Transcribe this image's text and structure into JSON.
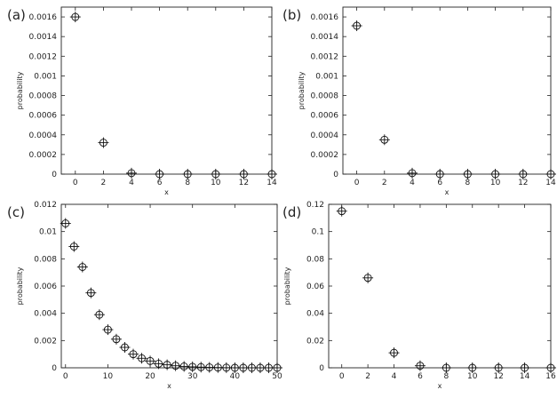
{
  "chart_data": [
    {
      "panel_label": "(a)",
      "type": "scatter",
      "xlabel": "x",
      "ylabel": "probability",
      "xlim": [
        -1,
        14
      ],
      "ylim": [
        0,
        0.0017
      ],
      "xticks": [
        "0",
        "2",
        "4",
        "6",
        "8",
        "10",
        "12",
        "14"
      ],
      "yticks": [
        "0",
        "0.0002",
        "0.0004",
        "0.0006",
        "0.0008",
        "0.001",
        "0.0012",
        "0.0014",
        "0.0016"
      ],
      "x": [
        0,
        2,
        4,
        6,
        8,
        10,
        12,
        14
      ],
      "y": [
        0.0016,
        0.00032,
        1e-05,
        0,
        0,
        0,
        0,
        0
      ],
      "grid": false
    },
    {
      "panel_label": "(b)",
      "type": "scatter",
      "xlabel": "x",
      "ylabel": "probability",
      "xlim": [
        -1,
        14
      ],
      "ylim": [
        0,
        0.0017
      ],
      "xticks": [
        "0",
        "2",
        "4",
        "6",
        "8",
        "10",
        "12",
        "14"
      ],
      "yticks": [
        "0",
        "0.0002",
        "0.0004",
        "0.0006",
        "0.0008",
        "0.001",
        "0.0012",
        "0.0014",
        "0.0016"
      ],
      "x": [
        0,
        2,
        4,
        6,
        8,
        10,
        12,
        14
      ],
      "y": [
        0.00151,
        0.00035,
        1e-05,
        0,
        0,
        0,
        0,
        0
      ],
      "grid": false
    },
    {
      "panel_label": "(c)",
      "type": "scatter",
      "xlabel": "x",
      "ylabel": "probability",
      "xlim": [
        -1,
        50
      ],
      "ylim": [
        0,
        0.012
      ],
      "xticks": [
        "0",
        "10",
        "20",
        "30",
        "40",
        "50"
      ],
      "yticks": [
        "0",
        "0.002",
        "0.004",
        "0.006",
        "0.008",
        "0.01",
        "0.012"
      ],
      "x": [
        0,
        2,
        4,
        6,
        8,
        10,
        12,
        14,
        16,
        18,
        20,
        22,
        24,
        26,
        28,
        30,
        32,
        34,
        36,
        38,
        40,
        42,
        44,
        46,
        48,
        50
      ],
      "y": [
        0.0106,
        0.0089,
        0.0074,
        0.0055,
        0.0039,
        0.0028,
        0.0021,
        0.0015,
        0.001,
        0.0007,
        0.0005,
        0.0003,
        0.00022,
        0.00015,
        0.0001,
        7e-05,
        5e-05,
        3e-05,
        2e-05,
        1e-05,
        0,
        0,
        0,
        0,
        0,
        0
      ],
      "grid": false
    },
    {
      "panel_label": "(d)",
      "type": "scatter",
      "xlabel": "x",
      "ylabel": "probability",
      "xlim": [
        -1,
        16
      ],
      "ylim": [
        0,
        0.12
      ],
      "xticks": [
        "0",
        "2",
        "4",
        "6",
        "8",
        "10",
        "12",
        "14",
        "16"
      ],
      "yticks": [
        "0",
        "0.02",
        "0.04",
        "0.06",
        "0.08",
        "0.1",
        "0.12"
      ],
      "x": [
        0,
        2,
        4,
        6,
        8,
        10,
        12,
        14,
        16
      ],
      "y": [
        0.115,
        0.066,
        0.011,
        0.0015,
        0,
        0,
        0,
        0,
        0
      ],
      "grid": false
    }
  ]
}
